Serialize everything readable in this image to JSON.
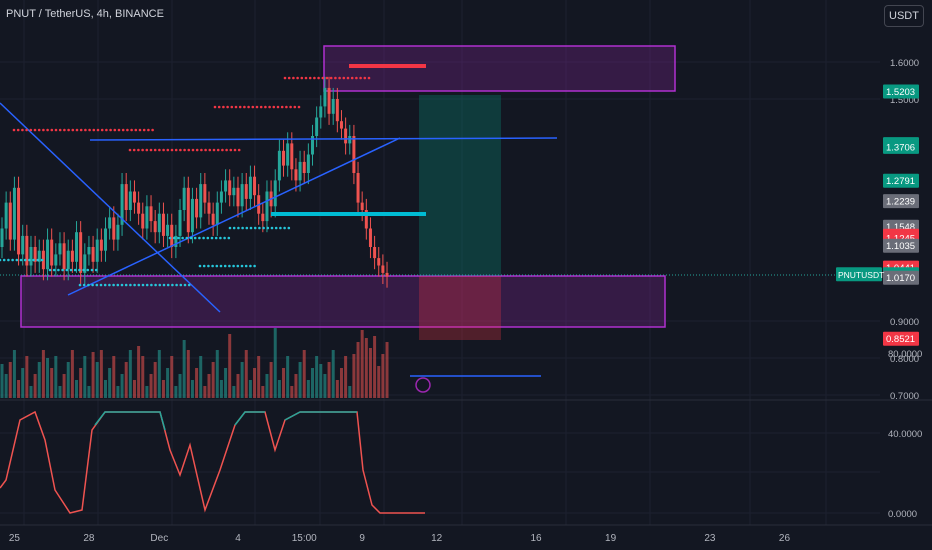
{
  "header": {
    "title": "PNUT / TetherUS, 4h, BINANCE",
    "currency_button": "USDT"
  },
  "price_axis": {
    "ticks": [
      {
        "label": "1.6000",
        "v": 1.6
      },
      {
        "label": "1.5000",
        "v": 1.5
      },
      {
        "label": "0.9000",
        "v": 0.9
      },
      {
        "label": "0.8000",
        "v": 0.8
      },
      {
        "label": "0.7000",
        "v": 0.7
      }
    ],
    "badges": [
      {
        "label": "1.5203",
        "v": 1.5203,
        "color": "#089981"
      },
      {
        "label": "1.3780",
        "v": 1.378,
        "color": "#089981"
      },
      {
        "label": "1.3706",
        "v": 1.3706,
        "color": "#089981"
      },
      {
        "label": "1.2791",
        "v": 1.2791,
        "color": "#089981"
      },
      {
        "label": "1.2239",
        "v": 1.2239,
        "color": "#6a6d78"
      },
      {
        "label": "1.1548",
        "v": 1.1548,
        "color": "#6a6d78"
      },
      {
        "label": "1.1305",
        "v": 1.1305,
        "color": "#f23645"
      },
      {
        "label": "1.1245",
        "v": 1.1245,
        "color": "#f23645"
      },
      {
        "label": "1.1035",
        "v": 1.1035,
        "color": "#6a6d78"
      },
      {
        "label": "1.0441",
        "v": 1.0441,
        "color": "#f23645"
      },
      {
        "label": "1.0262",
        "v": 1.0262,
        "color": "#089981"
      },
      {
        "label": "1.0170",
        "v": 1.017,
        "color": "#6a6d78"
      },
      {
        "label": "0.8521",
        "v": 0.8521,
        "color": "#f23645"
      }
    ],
    "symbol_tag": {
      "label": "PNUTUSDT",
      "v": 1.0262
    }
  },
  "oscillator_axis": {
    "ticks": [
      {
        "label": "80.0000",
        "v": 80
      },
      {
        "label": "40.0000",
        "v": 40
      },
      {
        "label": "0.0000",
        "v": 0
      }
    ]
  },
  "time_axis": {
    "labels": [
      {
        "label": "25",
        "i": 3
      },
      {
        "label": "28",
        "i": 21
      },
      {
        "label": "Dec",
        "i": 38
      },
      {
        "label": "4",
        "i": 57
      },
      {
        "label": "15:00",
        "i": 73
      },
      {
        "label": "9",
        "i": 87
      },
      {
        "label": "12",
        "i": 105
      },
      {
        "label": "16",
        "i": 129
      },
      {
        "label": "19",
        "i": 147
      },
      {
        "label": "23",
        "i": 171
      },
      {
        "label": "26",
        "i": 189
      }
    ]
  },
  "colors": {
    "up": "#26a69a",
    "down": "#ef5350",
    "background": "#131722",
    "accent": "#2962ff"
  }
}
